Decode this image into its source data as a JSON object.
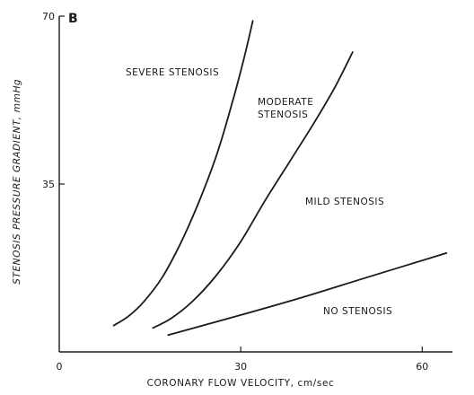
{
  "chart_data": {
    "type": "line",
    "panel_label": "B",
    "xlabel": "CORONARY FLOW VELOCITY, cm/sec",
    "ylabel": "STENOSIS PRESSURE GRADIENT, mmHg",
    "xlim": [
      0,
      65
    ],
    "ylim": [
      0,
      70
    ],
    "x_ticks": [
      {
        "value": 0,
        "label": "0"
      },
      {
        "value": 30,
        "label": "30"
      },
      {
        "value": 60,
        "label": "60"
      }
    ],
    "y_ticks": [
      {
        "value": 35,
        "label": "35"
      },
      {
        "value": 70,
        "label": "70"
      }
    ],
    "grid": false,
    "series": [
      {
        "name": "SEVERE STENOSIS",
        "label_lines": [
          "SEVERE STENOSIS"
        ],
        "points": [
          [
            9,
            5.5
          ],
          [
            11.5,
            7.5
          ],
          [
            14,
            10.5
          ],
          [
            17,
            15.5
          ],
          [
            20,
            22.5
          ],
          [
            23,
            31
          ],
          [
            26,
            41
          ],
          [
            28.5,
            51.5
          ],
          [
            30.5,
            61
          ],
          [
            32,
            69
          ]
        ]
      },
      {
        "name": "MODERATE STENOSIS",
        "label_lines": [
          "MODERATE",
          "STENOSIS"
        ],
        "points": [
          [
            15.5,
            5
          ],
          [
            18.5,
            7
          ],
          [
            22,
            10.5
          ],
          [
            26,
            16
          ],
          [
            30,
            23
          ],
          [
            34,
            31.5
          ],
          [
            38,
            39.5
          ],
          [
            42,
            47.5
          ],
          [
            45.5,
            55
          ],
          [
            48.5,
            62.5
          ]
        ]
      },
      {
        "name": "MILD STENOSIS",
        "label_lines": [
          "MILD STENOSIS"
        ],
        "points": []
      },
      {
        "name": "NO STENOSIS",
        "label_lines": [
          "NO STENOSIS"
        ],
        "points": [
          [
            18,
            3.5
          ],
          [
            30,
            7.7
          ],
          [
            40,
            11.3
          ],
          [
            50,
            15.2
          ],
          [
            64,
            20.6
          ]
        ]
      }
    ]
  }
}
